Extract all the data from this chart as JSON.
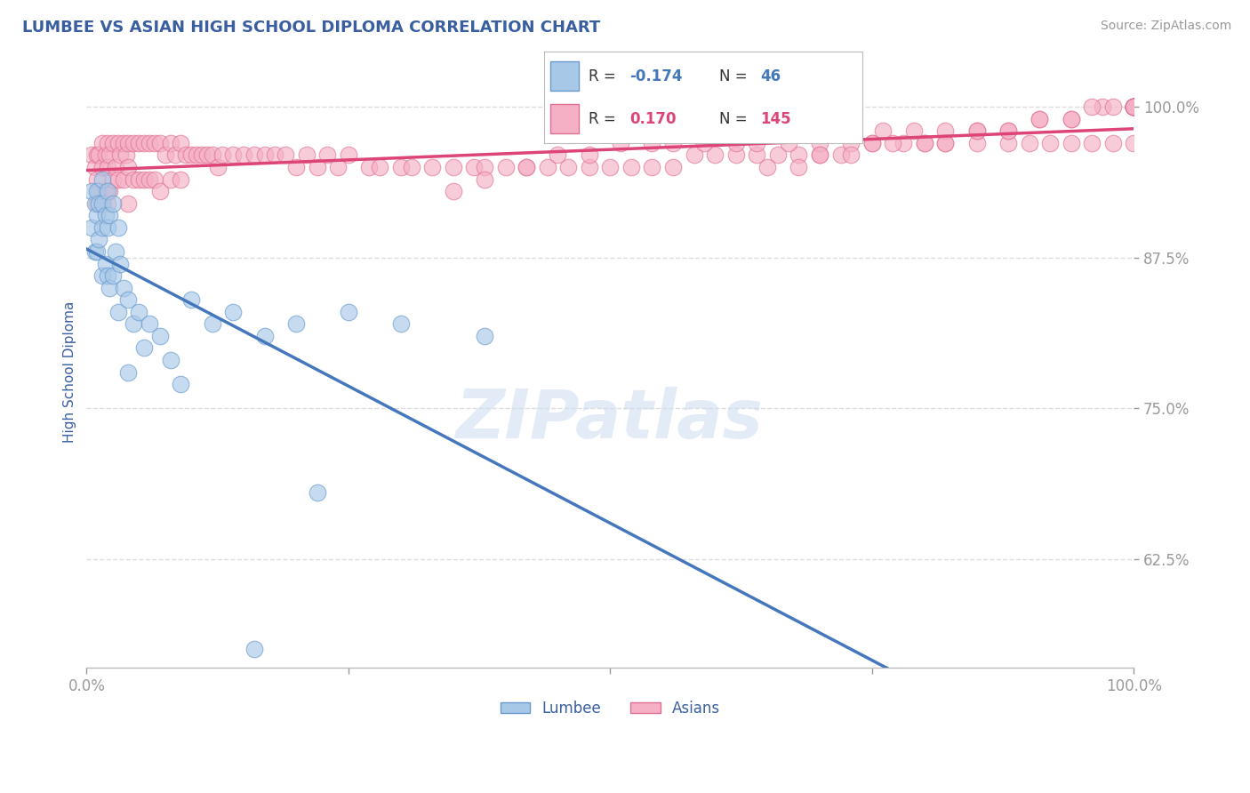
{
  "title": "LUMBEE VS ASIAN HIGH SCHOOL DIPLOMA CORRELATION CHART",
  "source_text": "Source: ZipAtlas.com",
  "ylabel": "High School Diploma",
  "xlim": [
    0,
    1
  ],
  "ylim": [
    0.535,
    1.025
  ],
  "yticks": [
    0.625,
    0.75,
    0.875,
    1.0
  ],
  "yticklabels": [
    "62.5%",
    "75.0%",
    "87.5%",
    "100.0%"
  ],
  "xtick_positions": [
    0.0,
    0.25,
    0.5,
    0.75,
    1.0
  ],
  "xticklabels": [
    "0.0%",
    "",
    "",
    "",
    "100.0%"
  ],
  "title_color": "#3a5fa0",
  "title_fontsize": 13,
  "axis_color": "#bbbbbb",
  "tick_color": "#999999",
  "label_color": "#3a5fa0",
  "source_color": "#999999",
  "grid_color": "#dddddd",
  "lumbee_color": "#a8c8e8",
  "lumbee_edge": "#6699cc",
  "asian_color": "#f5b0c5",
  "asian_edge": "#e07090",
  "lumbee_line_color": "#4477bb",
  "asian_line_color": "#dd4477",
  "watermark": "ZIPatlas",
  "lumbee_x": [
    0.005,
    0.005,
    0.008,
    0.008,
    0.01,
    0.01,
    0.01,
    0.012,
    0.012,
    0.015,
    0.015,
    0.015,
    0.015,
    0.018,
    0.018,
    0.02,
    0.02,
    0.02,
    0.022,
    0.022,
    0.025,
    0.025,
    0.028,
    0.03,
    0.03,
    0.032,
    0.035,
    0.04,
    0.04,
    0.045,
    0.05,
    0.055,
    0.06,
    0.07,
    0.08,
    0.09,
    0.1,
    0.12,
    0.14,
    0.17,
    0.2,
    0.25,
    0.3,
    0.38,
    0.16,
    0.22
  ],
  "lumbee_y": [
    0.93,
    0.9,
    0.92,
    0.88,
    0.93,
    0.91,
    0.88,
    0.92,
    0.89,
    0.94,
    0.92,
    0.9,
    0.86,
    0.91,
    0.87,
    0.93,
    0.9,
    0.86,
    0.91,
    0.85,
    0.92,
    0.86,
    0.88,
    0.9,
    0.83,
    0.87,
    0.85,
    0.84,
    0.78,
    0.82,
    0.83,
    0.8,
    0.82,
    0.81,
    0.79,
    0.77,
    0.84,
    0.82,
    0.83,
    0.81,
    0.82,
    0.83,
    0.82,
    0.81,
    0.55,
    0.68
  ],
  "asian_x": [
    0.005,
    0.008,
    0.01,
    0.01,
    0.01,
    0.012,
    0.012,
    0.015,
    0.015,
    0.015,
    0.018,
    0.018,
    0.02,
    0.02,
    0.02,
    0.022,
    0.022,
    0.025,
    0.025,
    0.028,
    0.03,
    0.03,
    0.032,
    0.035,
    0.035,
    0.038,
    0.04,
    0.04,
    0.04,
    0.045,
    0.045,
    0.05,
    0.05,
    0.055,
    0.055,
    0.06,
    0.06,
    0.065,
    0.065,
    0.07,
    0.07,
    0.075,
    0.08,
    0.08,
    0.085,
    0.09,
    0.09,
    0.095,
    0.1,
    0.105,
    0.11,
    0.115,
    0.12,
    0.125,
    0.13,
    0.14,
    0.15,
    0.16,
    0.17,
    0.18,
    0.19,
    0.2,
    0.21,
    0.22,
    0.23,
    0.24,
    0.25,
    0.27,
    0.28,
    0.3,
    0.31,
    0.33,
    0.35,
    0.37,
    0.38,
    0.4,
    0.42,
    0.44,
    0.46,
    0.48,
    0.5,
    0.52,
    0.54,
    0.56,
    0.58,
    0.6,
    0.62,
    0.64,
    0.66,
    0.68,
    0.7,
    0.72,
    0.75,
    0.78,
    0.8,
    0.82,
    0.85,
    0.88,
    0.9,
    0.92,
    0.94,
    0.96,
    0.98,
    1.0,
    1.0,
    0.35,
    0.38,
    0.42,
    0.45,
    0.48,
    0.51,
    0.54,
    0.56,
    0.59,
    0.62,
    0.64,
    0.67,
    0.7,
    0.73,
    0.76,
    0.79,
    0.82,
    0.85,
    0.88,
    0.91,
    0.94,
    0.97,
    1.0,
    0.65,
    0.68,
    0.7,
    0.73,
    0.75,
    0.77,
    0.8,
    0.82,
    0.85,
    0.88,
    0.91,
    0.94,
    0.96,
    0.98,
    1.0,
    1.0,
    1.0,
    1.0,
    1.0,
    1.0,
    1.0
  ],
  "asian_y": [
    0.96,
    0.95,
    0.96,
    0.94,
    0.92,
    0.96,
    0.93,
    0.97,
    0.95,
    0.92,
    0.96,
    0.93,
    0.97,
    0.95,
    0.92,
    0.96,
    0.93,
    0.97,
    0.94,
    0.95,
    0.97,
    0.94,
    0.96,
    0.97,
    0.94,
    0.96,
    0.97,
    0.95,
    0.92,
    0.97,
    0.94,
    0.97,
    0.94,
    0.97,
    0.94,
    0.97,
    0.94,
    0.97,
    0.94,
    0.97,
    0.93,
    0.96,
    0.97,
    0.94,
    0.96,
    0.97,
    0.94,
    0.96,
    0.96,
    0.96,
    0.96,
    0.96,
    0.96,
    0.95,
    0.96,
    0.96,
    0.96,
    0.96,
    0.96,
    0.96,
    0.96,
    0.95,
    0.96,
    0.95,
    0.96,
    0.95,
    0.96,
    0.95,
    0.95,
    0.95,
    0.95,
    0.95,
    0.95,
    0.95,
    0.95,
    0.95,
    0.95,
    0.95,
    0.95,
    0.95,
    0.95,
    0.95,
    0.95,
    0.95,
    0.96,
    0.96,
    0.96,
    0.96,
    0.96,
    0.96,
    0.96,
    0.96,
    0.97,
    0.97,
    0.97,
    0.97,
    0.97,
    0.97,
    0.97,
    0.97,
    0.97,
    0.97,
    0.97,
    0.97,
    1.0,
    0.93,
    0.94,
    0.95,
    0.96,
    0.96,
    0.97,
    0.97,
    0.97,
    0.97,
    0.97,
    0.97,
    0.97,
    0.97,
    0.97,
    0.98,
    0.98,
    0.98,
    0.98,
    0.98,
    0.99,
    0.99,
    1.0,
    1.0,
    0.95,
    0.95,
    0.96,
    0.96,
    0.97,
    0.97,
    0.97,
    0.97,
    0.98,
    0.98,
    0.99,
    0.99,
    1.0,
    1.0,
    1.0,
    1.0,
    1.0,
    1.0,
    1.0,
    1.0,
    1.0
  ]
}
